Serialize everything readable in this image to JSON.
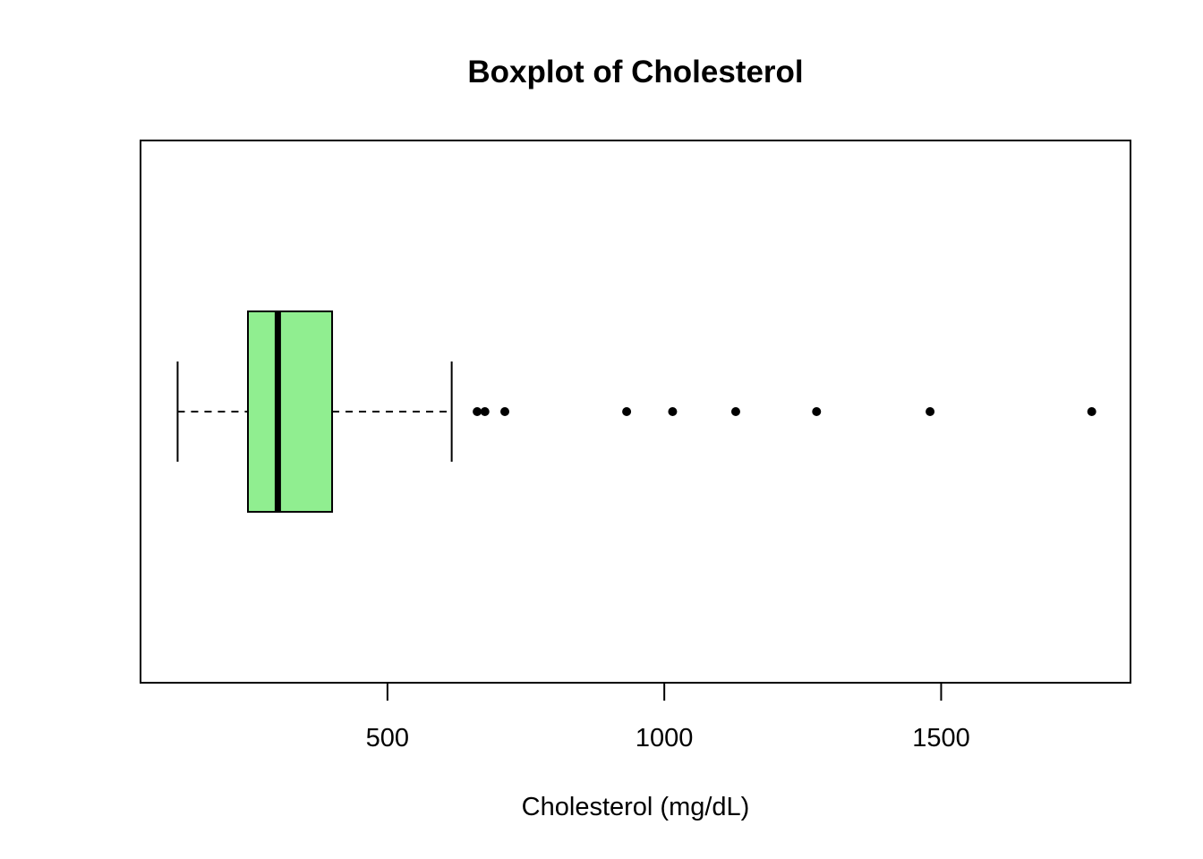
{
  "chart_data": {
    "type": "boxplot",
    "orientation": "horizontal",
    "title": "Boxplot of Cholesterol",
    "xlabel": "Cholesterol (mg/dL)",
    "ylabel": "",
    "xlim": [
      54,
      1842
    ],
    "xticks": [
      500,
      1000,
      1500
    ],
    "xtick_labels": [
      "500",
      "1000",
      "1500"
    ],
    "grid": false,
    "box": {
      "whisker_low": 121,
      "q1": 248,
      "median": 302,
      "q3": 400,
      "whisker_high": 616,
      "fill_color": "#90EE90",
      "line_color": "#000000"
    },
    "outliers": [
      662,
      676,
      712,
      932,
      1015,
      1129,
      1275,
      1480,
      1772
    ]
  }
}
